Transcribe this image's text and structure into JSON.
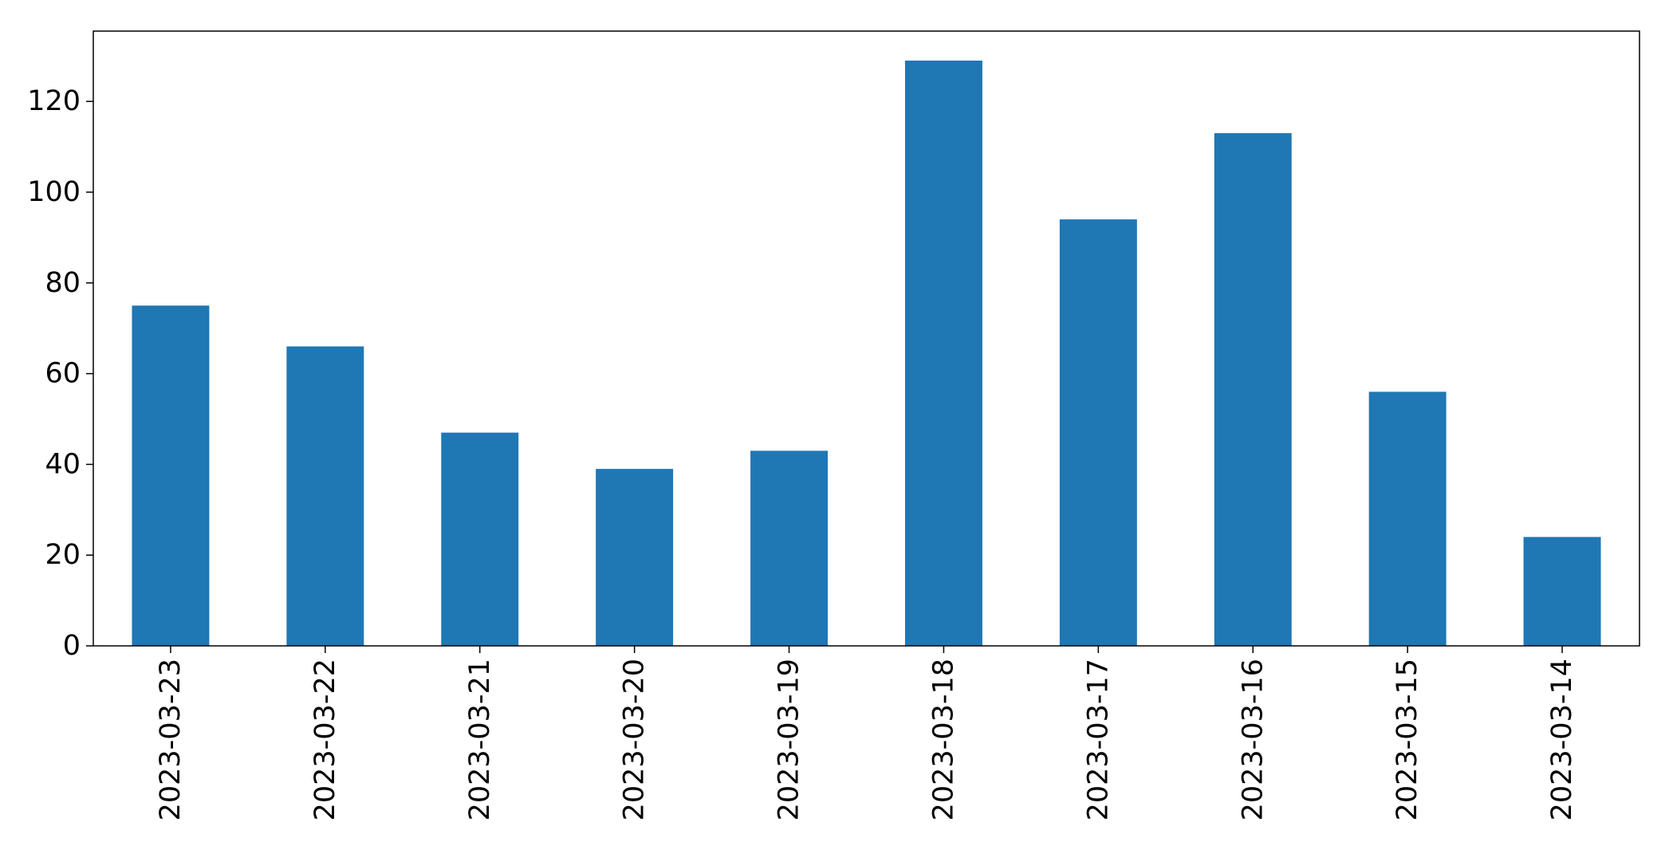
{
  "chart_data": {
    "type": "bar",
    "categories": [
      "2023-03-23",
      "2023-03-22",
      "2023-03-21",
      "2023-03-20",
      "2023-03-19",
      "2023-03-18",
      "2023-03-17",
      "2023-03-16",
      "2023-03-15",
      "2023-03-14"
    ],
    "values": [
      75,
      66,
      47,
      39,
      43,
      129,
      94,
      113,
      56,
      24
    ],
    "title": "",
    "xlabel": "",
    "ylabel": "",
    "ylim": [
      0,
      135.5
    ],
    "yticks": [
      0,
      20,
      40,
      60,
      80,
      100,
      120
    ],
    "grid": false,
    "legend": "none",
    "bar_color": "#1f77b4"
  }
}
